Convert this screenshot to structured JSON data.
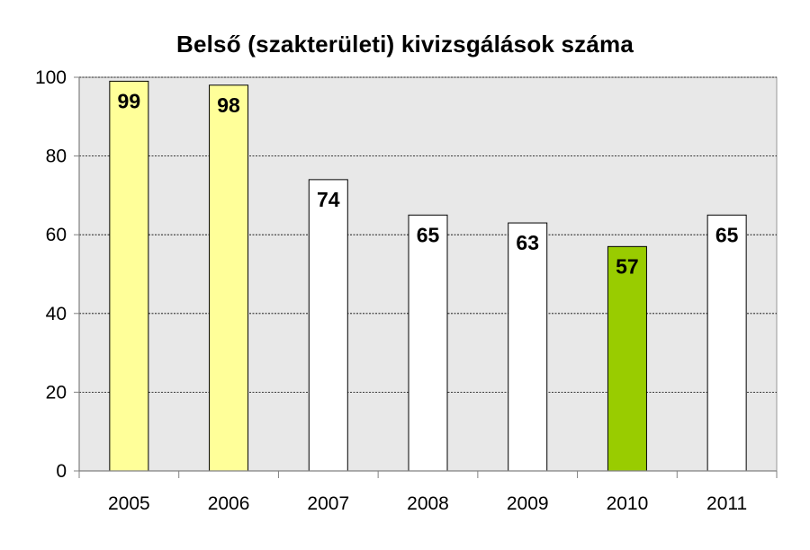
{
  "chart_data": {
    "type": "bar",
    "title": "Belső (szakterületi) kivizsgálások száma",
    "xlabel": "",
    "ylabel": "",
    "categories": [
      "2005",
      "2006",
      "2007",
      "2008",
      "2009",
      "2010",
      "2011"
    ],
    "values": [
      99,
      98,
      74,
      65,
      63,
      57,
      65
    ],
    "bar_colors": [
      "#FFFF99",
      "#FFFF99",
      "#FFFFFF",
      "#FFFFFF",
      "#FFFFFF",
      "#99CC00",
      "#FFFFFF"
    ],
    "ylim": [
      0,
      100
    ],
    "yticks": [
      "0",
      "20",
      "40",
      "60",
      "80",
      "100"
    ],
    "grid": true,
    "legend": "none",
    "plot_background": "#E8E8E8"
  }
}
